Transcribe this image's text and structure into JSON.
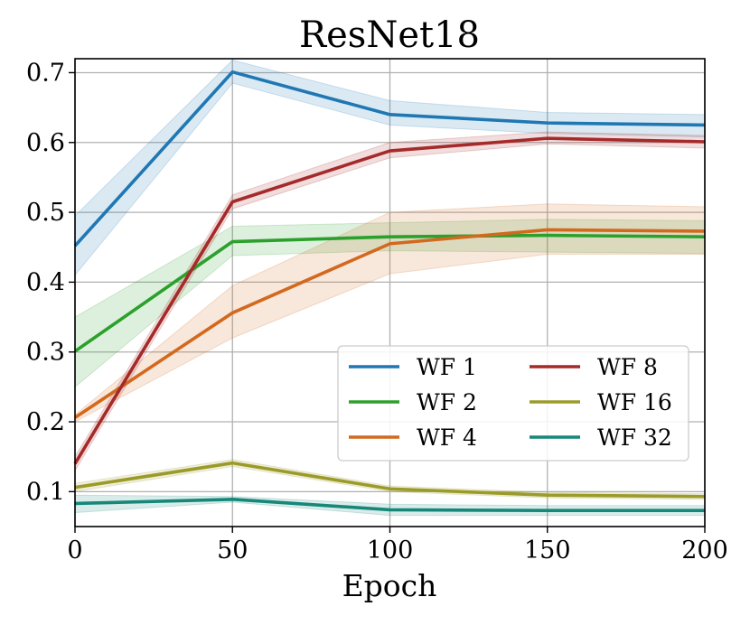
{
  "chart_data": {
    "type": "line",
    "title": "ResNet18",
    "xlabel": "Epoch",
    "ylabel": "",
    "xlim": [
      0,
      200
    ],
    "ylim": [
      0.05,
      0.72
    ],
    "xticks": [
      0,
      50,
      100,
      150,
      200
    ],
    "yticks": [
      0.1,
      0.2,
      0.3,
      0.4,
      0.5,
      0.6,
      0.7
    ],
    "xtick_labels": [
      "0",
      "50",
      "100",
      "150",
      "200"
    ],
    "ytick_labels": [
      "0.1",
      "0.2",
      "0.3",
      "0.4",
      "0.5",
      "0.6",
      "0.7"
    ],
    "grid": true,
    "legend_position": "lower-right",
    "legend_columns": 2,
    "x": [
      0,
      50,
      100,
      150,
      200
    ],
    "series": [
      {
        "name": "WF 1",
        "color": "#1f77b4",
        "values": [
          0.452,
          0.701,
          0.64,
          0.628,
          0.625
        ],
        "lower": [
          0.41,
          0.685,
          0.625,
          0.613,
          0.608
        ],
        "upper": [
          0.495,
          0.718,
          0.66,
          0.643,
          0.64
        ]
      },
      {
        "name": "WF 2",
        "color": "#2ca02c",
        "values": [
          0.301,
          0.458,
          0.465,
          0.467,
          0.465
        ],
        "lower": [
          0.25,
          0.438,
          0.445,
          0.443,
          0.441
        ],
        "upper": [
          0.35,
          0.48,
          0.485,
          0.49,
          0.488
        ]
      },
      {
        "name": "WF 4",
        "color": "#d2691e",
        "values": [
          0.206,
          0.356,
          0.455,
          0.475,
          0.473
        ],
        "lower": [
          0.2,
          0.32,
          0.412,
          0.44,
          0.44
        ],
        "upper": [
          0.21,
          0.395,
          0.5,
          0.512,
          0.508
        ]
      },
      {
        "name": "WF 8",
        "color": "#a52a2a",
        "values": [
          0.14,
          0.515,
          0.588,
          0.606,
          0.601
        ],
        "lower": [
          0.13,
          0.505,
          0.578,
          0.598,
          0.592
        ],
        "upper": [
          0.15,
          0.525,
          0.6,
          0.615,
          0.61
        ]
      },
      {
        "name": "WF 16",
        "color": "#9b9b2a",
        "values": [
          0.106,
          0.141,
          0.104,
          0.095,
          0.093
        ],
        "lower": [
          0.1,
          0.136,
          0.1,
          0.091,
          0.089
        ],
        "upper": [
          0.112,
          0.146,
          0.108,
          0.099,
          0.097
        ]
      },
      {
        "name": "WF 32",
        "color": "#17877a",
        "values": [
          0.083,
          0.089,
          0.074,
          0.073,
          0.073
        ],
        "lower": [
          0.07,
          0.085,
          0.066,
          0.066,
          0.066
        ],
        "upper": [
          0.095,
          0.093,
          0.082,
          0.08,
          0.08
        ]
      }
    ]
  }
}
